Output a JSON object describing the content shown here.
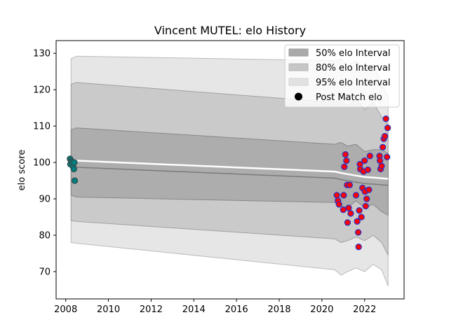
{
  "chart_data": {
    "type": "line",
    "title": "Vincent MUTEL: elo History",
    "xlabel": "",
    "ylabel": "elo score",
    "xlim": [
      2007.55,
      2023.85
    ],
    "ylim": [
      62.5,
      133.5
    ],
    "xticks": [
      2008,
      2010,
      2012,
      2014,
      2016,
      2018,
      2020,
      2022
    ],
    "yticks": [
      70,
      80,
      90,
      100,
      110,
      120,
      130
    ],
    "grid": false,
    "legend_position": "top-right",
    "legend": [
      {
        "label": "50% elo Interval",
        "color": "#a9a9a9"
      },
      {
        "label": "80% elo Interval",
        "color": "#c4c4c4"
      },
      {
        "label": "95% elo Interval",
        "color": "#e0e0e0"
      },
      {
        "label": "Post Match elo",
        "color": "#000000"
      }
    ],
    "bands": {
      "x": [
        2008.25,
        2008.5,
        2020.6,
        2020.9,
        2021.2,
        2021.6,
        2022.0,
        2022.4,
        2022.8,
        2023.1
      ],
      "p95_upper": [
        128.5,
        129.2,
        128.0,
        128.5,
        126.5,
        128.0,
        125.5,
        127.0,
        121.5,
        118.0
      ],
      "p95_lower": [
        78.0,
        77.8,
        70.5,
        69.0,
        70.0,
        71.0,
        70.0,
        72.0,
        70.5,
        66.0
      ],
      "p80_upper": [
        121.5,
        122.0,
        116.5,
        117.0,
        115.5,
        117.5,
        114.5,
        116.5,
        112.5,
        110.5
      ],
      "p80_lower": [
        84.0,
        83.8,
        79.0,
        78.0,
        78.5,
        79.5,
        78.5,
        80.0,
        78.0,
        74.5
      ],
      "p50_upper": [
        109.0,
        109.5,
        105.0,
        105.5,
        104.5,
        105.0,
        103.0,
        103.5,
        103.5,
        102.5
      ],
      "p50_lower": [
        91.0,
        90.5,
        89.0,
        88.0,
        87.5,
        89.5,
        87.5,
        88.5,
        86.5,
        85.5
      ]
    },
    "mean_line": {
      "x": [
        2008.25,
        2008.5,
        2020.6,
        2021.0,
        2021.5,
        2022.0,
        2022.5,
        2023.1
      ],
      "y": [
        100.8,
        100.5,
        97.5,
        97.0,
        96.5,
        96.0,
        95.8,
        95.5
      ]
    },
    "series": [
      {
        "fill": "#008080",
        "edge": "#2f4f4f",
        "x": [
          2008.2,
          2008.22,
          2008.25,
          2008.28,
          2008.32,
          2008.35,
          2008.38,
          2008.4,
          2008.42
        ],
        "y": [
          101.0,
          99.5,
          100.5,
          100.2,
          99.8,
          98.8,
          98.2,
          100.0,
          95.0
        ]
      },
      {
        "fill": "#ff0000",
        "edge": "#3030c0",
        "x": [
          2020.7,
          2020.75,
          2020.8,
          2021.0,
          2021.02,
          2021.05,
          2021.1,
          2021.15,
          2021.18,
          2021.2,
          2021.25,
          2021.3,
          2021.35,
          2021.6,
          2021.65,
          2021.7,
          2021.72,
          2021.75,
          2021.78,
          2021.8,
          2021.85,
          2021.9,
          2021.95,
          2022.0,
          2022.02,
          2022.05,
          2022.1,
          2022.15,
          2022.2,
          2022.25,
          2022.7,
          2022.72,
          2022.75,
          2022.8,
          2022.85,
          2022.9,
          2022.95,
          2023.0,
          2023.05,
          2023.08
        ],
        "y": [
          91.0,
          89.5,
          88.5,
          87.0,
          91.0,
          98.8,
          102.2,
          100.5,
          93.8,
          83.5,
          87.5,
          93.8,
          86.0,
          91.0,
          83.8,
          80.8,
          76.8,
          86.8,
          99.5,
          98.2,
          85.0,
          93.0,
          97.5,
          100.5,
          92.0,
          88.0,
          90.0,
          98.0,
          92.5,
          101.8,
          101.8,
          100.5,
          98.2,
          99.0,
          104.2,
          106.5,
          107.2,
          112.0,
          101.5,
          109.5
        ]
      }
    ]
  }
}
